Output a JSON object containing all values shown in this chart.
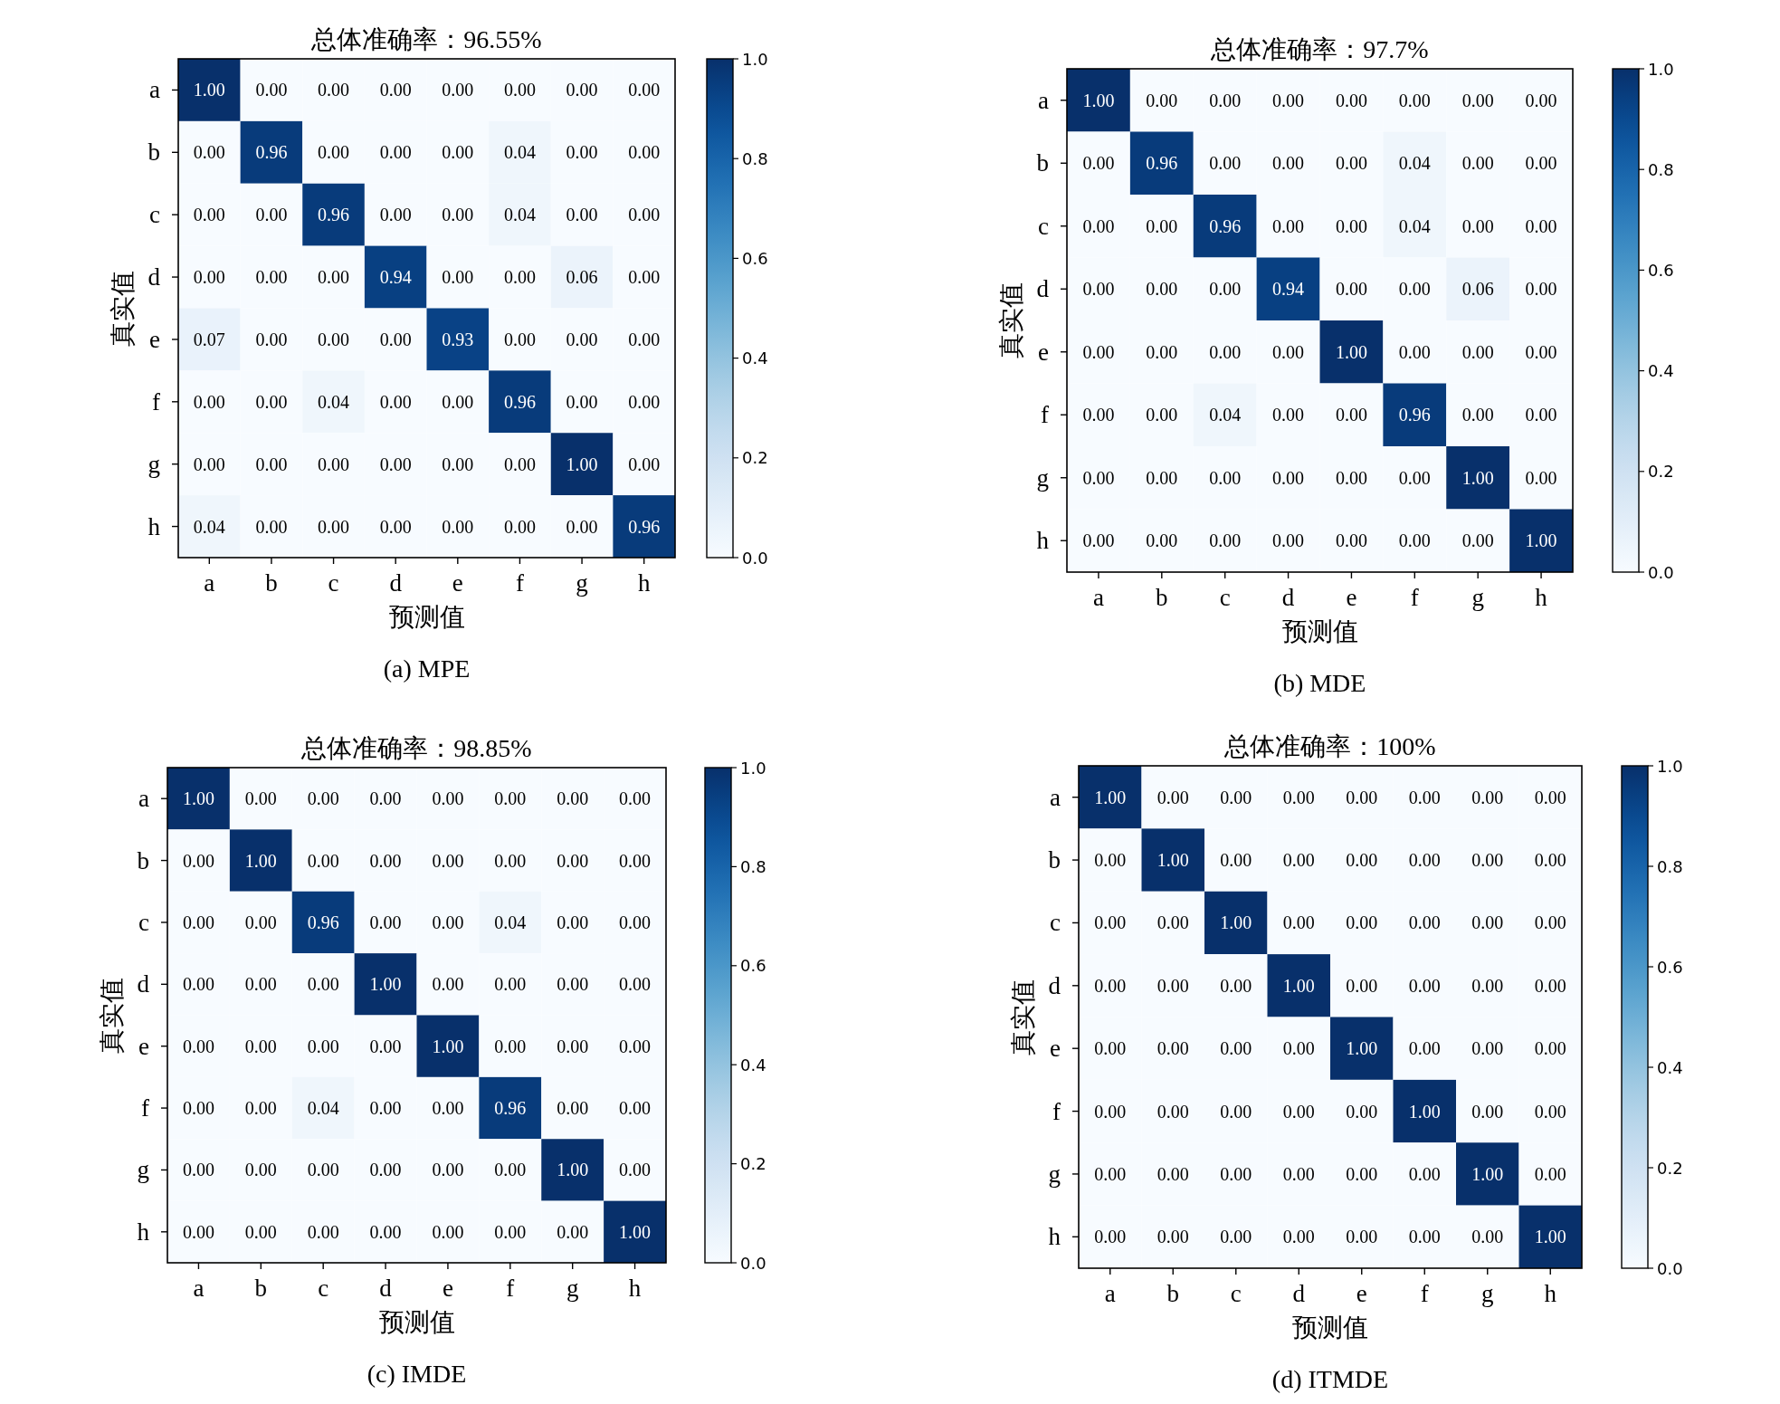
{
  "chart_data": [
    {
      "type": "heatmap",
      "title": "总体准确率：96.55%",
      "xlabel": "预测值",
      "ylabel": "真实值",
      "annotations": [
        "(a)  MPE"
      ],
      "categories": [
        "a",
        "b",
        "c",
        "d",
        "e",
        "f",
        "g",
        "h"
      ],
      "y_categories": [
        "a",
        "b",
        "c",
        "d",
        "e",
        "f",
        "g",
        "h"
      ],
      "cells": [
        [
          1,
          0,
          0,
          0,
          0,
          0,
          0,
          0
        ],
        [
          0,
          0.96,
          0,
          0,
          0,
          0.04,
          0,
          0
        ],
        [
          0,
          0,
          0.96,
          0,
          0,
          0.04,
          0,
          0
        ],
        [
          0,
          0,
          0,
          0.94,
          0,
          0,
          0.06,
          0
        ],
        [
          0.07,
          0,
          0,
          0,
          0.93,
          0,
          0,
          0
        ],
        [
          0,
          0,
          0.04,
          0,
          0,
          0.96,
          0,
          0
        ],
        [
          0,
          0,
          0,
          0,
          0,
          0,
          1,
          0
        ],
        [
          0.04,
          0,
          0,
          0,
          0,
          0,
          0,
          0.96
        ]
      ],
      "cell_labels": [
        [
          "1.00",
          "0.00",
          "0.00",
          "0.00",
          "0.00",
          "0.00",
          "0.00",
          "0.00"
        ],
        [
          "0.00",
          "0.96",
          "0.00",
          "0.00",
          "0.00",
          "0.04",
          "0.00",
          "0.00"
        ],
        [
          "0.00",
          "0.00",
          "0.96",
          "0.00",
          "0.00",
          "0.04",
          "0.00",
          "0.00"
        ],
        [
          "0.00",
          "0.00",
          "0.00",
          "0.94",
          "0.00",
          "0.00",
          "0.06",
          "0.00"
        ],
        [
          "0.07",
          "0.00",
          "0.00",
          "0.00",
          "0.93",
          "0.00",
          "0.00",
          "0.00"
        ],
        [
          "0.00",
          "0.00",
          "0.04",
          "0.00",
          "0.00",
          "0.96",
          "0.00",
          "0.00"
        ],
        [
          "0.00",
          "0.00",
          "0.00",
          "0.00",
          "0.00",
          "0.00",
          "1.00",
          "0.00"
        ],
        [
          "0.04",
          "0.00",
          "0.00",
          "0.00",
          "0.00",
          "0.00",
          "0.00",
          "0.96"
        ]
      ],
      "clim": [
        0,
        1
      ],
      "cticks": [
        {
          "value": 0,
          "label": "0.0"
        },
        {
          "value": 0.2,
          "label": "0.2"
        },
        {
          "value": 0.4,
          "label": "0.4"
        },
        {
          "value": 0.6,
          "label": "0.6"
        },
        {
          "value": 0.8,
          "label": "0.8"
        },
        {
          "value": 1,
          "label": "1.0"
        }
      ]
    },
    {
      "type": "heatmap",
      "title": "总体准确率：97.7%",
      "xlabel": "预测值",
      "ylabel": "真实值",
      "annotations": [
        "(b)  MDE"
      ],
      "categories": [
        "a",
        "b",
        "c",
        "d",
        "e",
        "f",
        "g",
        "h"
      ],
      "y_categories": [
        "a",
        "b",
        "c",
        "d",
        "e",
        "f",
        "g",
        "h"
      ],
      "cells": [
        [
          1,
          0,
          0,
          0,
          0,
          0,
          0,
          0
        ],
        [
          0,
          0.96,
          0,
          0,
          0,
          0.04,
          0,
          0
        ],
        [
          0,
          0,
          0.96,
          0,
          0,
          0.04,
          0,
          0
        ],
        [
          0,
          0,
          0,
          0.94,
          0,
          0,
          0.06,
          0
        ],
        [
          0,
          0,
          0,
          0,
          1,
          0,
          0,
          0
        ],
        [
          0,
          0,
          0.04,
          0,
          0,
          0.96,
          0,
          0
        ],
        [
          0,
          0,
          0,
          0,
          0,
          0,
          1,
          0
        ],
        [
          0,
          0,
          0,
          0,
          0,
          0,
          0,
          1
        ]
      ],
      "cell_labels": [
        [
          "1.00",
          "0.00",
          "0.00",
          "0.00",
          "0.00",
          "0.00",
          "0.00",
          "0.00"
        ],
        [
          "0.00",
          "0.96",
          "0.00",
          "0.00",
          "0.00",
          "0.04",
          "0.00",
          "0.00"
        ],
        [
          "0.00",
          "0.00",
          "0.96",
          "0.00",
          "0.00",
          "0.04",
          "0.00",
          "0.00"
        ],
        [
          "0.00",
          "0.00",
          "0.00",
          "0.94",
          "0.00",
          "0.00",
          "0.06",
          "0.00"
        ],
        [
          "0.00",
          "0.00",
          "0.00",
          "0.00",
          "1.00",
          "0.00",
          "0.00",
          "0.00"
        ],
        [
          "0.00",
          "0.00",
          "0.04",
          "0.00",
          "0.00",
          "0.96",
          "0.00",
          "0.00"
        ],
        [
          "0.00",
          "0.00",
          "0.00",
          "0.00",
          "0.00",
          "0.00",
          "1.00",
          "0.00"
        ],
        [
          "0.00",
          "0.00",
          "0.00",
          "0.00",
          "0.00",
          "0.00",
          "0.00",
          "1.00"
        ]
      ],
      "clim": [
        0,
        1
      ],
      "cticks": [
        {
          "value": 0,
          "label": "0.0"
        },
        {
          "value": 0.2,
          "label": "0.2"
        },
        {
          "value": 0.4,
          "label": "0.4"
        },
        {
          "value": 0.6,
          "label": "0.6"
        },
        {
          "value": 0.8,
          "label": "0.8"
        },
        {
          "value": 1,
          "label": "1.0"
        }
      ]
    },
    {
      "type": "heatmap",
      "title": "总体准确率：98.85%",
      "xlabel": "预测值",
      "ylabel": "真实值",
      "annotations": [
        "(c)  IMDE"
      ],
      "categories": [
        "a",
        "b",
        "c",
        "d",
        "e",
        "f",
        "g",
        "h"
      ],
      "y_categories": [
        "a",
        "b",
        "c",
        "d",
        "e",
        "f",
        "g",
        "h"
      ],
      "cells": [
        [
          1,
          0,
          0,
          0,
          0,
          0,
          0,
          0
        ],
        [
          0,
          1,
          0,
          0,
          0,
          0,
          0,
          0
        ],
        [
          0,
          0,
          0.96,
          0,
          0,
          0.04,
          0,
          0
        ],
        [
          0,
          0,
          0,
          1,
          0,
          0,
          0,
          0
        ],
        [
          0,
          0,
          0,
          0,
          1,
          0,
          0,
          0
        ],
        [
          0,
          0,
          0.04,
          0,
          0,
          0.96,
          0,
          0
        ],
        [
          0,
          0,
          0,
          0,
          0,
          0,
          1,
          0
        ],
        [
          0,
          0,
          0,
          0,
          0,
          0,
          0,
          1
        ]
      ],
      "cell_labels": [
        [
          "1.00",
          "0.00",
          "0.00",
          "0.00",
          "0.00",
          "0.00",
          "0.00",
          "0.00"
        ],
        [
          "0.00",
          "1.00",
          "0.00",
          "0.00",
          "0.00",
          "0.00",
          "0.00",
          "0.00"
        ],
        [
          "0.00",
          "0.00",
          "0.96",
          "0.00",
          "0.00",
          "0.04",
          "0.00",
          "0.00"
        ],
        [
          "0.00",
          "0.00",
          "0.00",
          "1.00",
          "0.00",
          "0.00",
          "0.00",
          "0.00"
        ],
        [
          "0.00",
          "0.00",
          "0.00",
          "0.00",
          "1.00",
          "0.00",
          "0.00",
          "0.00"
        ],
        [
          "0.00",
          "0.00",
          "0.04",
          "0.00",
          "0.00",
          "0.96",
          "0.00",
          "0.00"
        ],
        [
          "0.00",
          "0.00",
          "0.00",
          "0.00",
          "0.00",
          "0.00",
          "1.00",
          "0.00"
        ],
        [
          "0.00",
          "0.00",
          "0.00",
          "0.00",
          "0.00",
          "0.00",
          "0.00",
          "1.00"
        ]
      ],
      "clim": [
        0,
        1
      ],
      "cticks": [
        {
          "value": 0,
          "label": "0.0"
        },
        {
          "value": 0.2,
          "label": "0.2"
        },
        {
          "value": 0.4,
          "label": "0.4"
        },
        {
          "value": 0.6,
          "label": "0.6"
        },
        {
          "value": 0.8,
          "label": "0.8"
        },
        {
          "value": 1,
          "label": "1.0"
        }
      ]
    },
    {
      "type": "heatmap",
      "title": "总体准确率：100%",
      "xlabel": "预测值",
      "ylabel": "真实值",
      "annotations": [
        "(d)  ITMDE"
      ],
      "categories": [
        "a",
        "b",
        "c",
        "d",
        "e",
        "f",
        "g",
        "h"
      ],
      "y_categories": [
        "a",
        "b",
        "c",
        "d",
        "e",
        "f",
        "g",
        "h"
      ],
      "cells": [
        [
          1,
          0,
          0,
          0,
          0,
          0,
          0,
          0
        ],
        [
          0,
          1,
          0,
          0,
          0,
          0,
          0,
          0
        ],
        [
          0,
          0,
          1,
          0,
          0,
          0,
          0,
          0
        ],
        [
          0,
          0,
          0,
          1,
          0,
          0,
          0,
          0
        ],
        [
          0,
          0,
          0,
          0,
          1,
          0,
          0,
          0
        ],
        [
          0,
          0,
          0,
          0,
          0,
          1,
          0,
          0
        ],
        [
          0,
          0,
          0,
          0,
          0,
          0,
          1,
          0
        ],
        [
          0,
          0,
          0,
          0,
          0,
          0,
          0,
          1
        ]
      ],
      "cell_labels": [
        [
          "1.00",
          "0.00",
          "0.00",
          "0.00",
          "0.00",
          "0.00",
          "0.00",
          "0.00"
        ],
        [
          "0.00",
          "1.00",
          "0.00",
          "0.00",
          "0.00",
          "0.00",
          "0.00",
          "0.00"
        ],
        [
          "0.00",
          "0.00",
          "1.00",
          "0.00",
          "0.00",
          "0.00",
          "0.00",
          "0.00"
        ],
        [
          "0.00",
          "0.00",
          "0.00",
          "1.00",
          "0.00",
          "0.00",
          "0.00",
          "0.00"
        ],
        [
          "0.00",
          "0.00",
          "0.00",
          "0.00",
          "1.00",
          "0.00",
          "0.00",
          "0.00"
        ],
        [
          "0.00",
          "0.00",
          "0.00",
          "0.00",
          "0.00",
          "1.00",
          "0.00",
          "0.00"
        ],
        [
          "0.00",
          "0.00",
          "0.00",
          "0.00",
          "0.00",
          "0.00",
          "1.00",
          "0.00"
        ],
        [
          "0.00",
          "0.00",
          "0.00",
          "0.00",
          "0.00",
          "0.00",
          "0.00",
          "1.00"
        ]
      ],
      "clim": [
        0,
        1
      ],
      "cticks": [
        {
          "value": 0,
          "label": "0.0"
        },
        {
          "value": 0.2,
          "label": "0.2"
        },
        {
          "value": 0.4,
          "label": "0.4"
        },
        {
          "value": 0.6,
          "label": "0.6"
        },
        {
          "value": 0.8,
          "label": "0.8"
        },
        {
          "value": 1,
          "label": "1.0"
        }
      ]
    }
  ]
}
